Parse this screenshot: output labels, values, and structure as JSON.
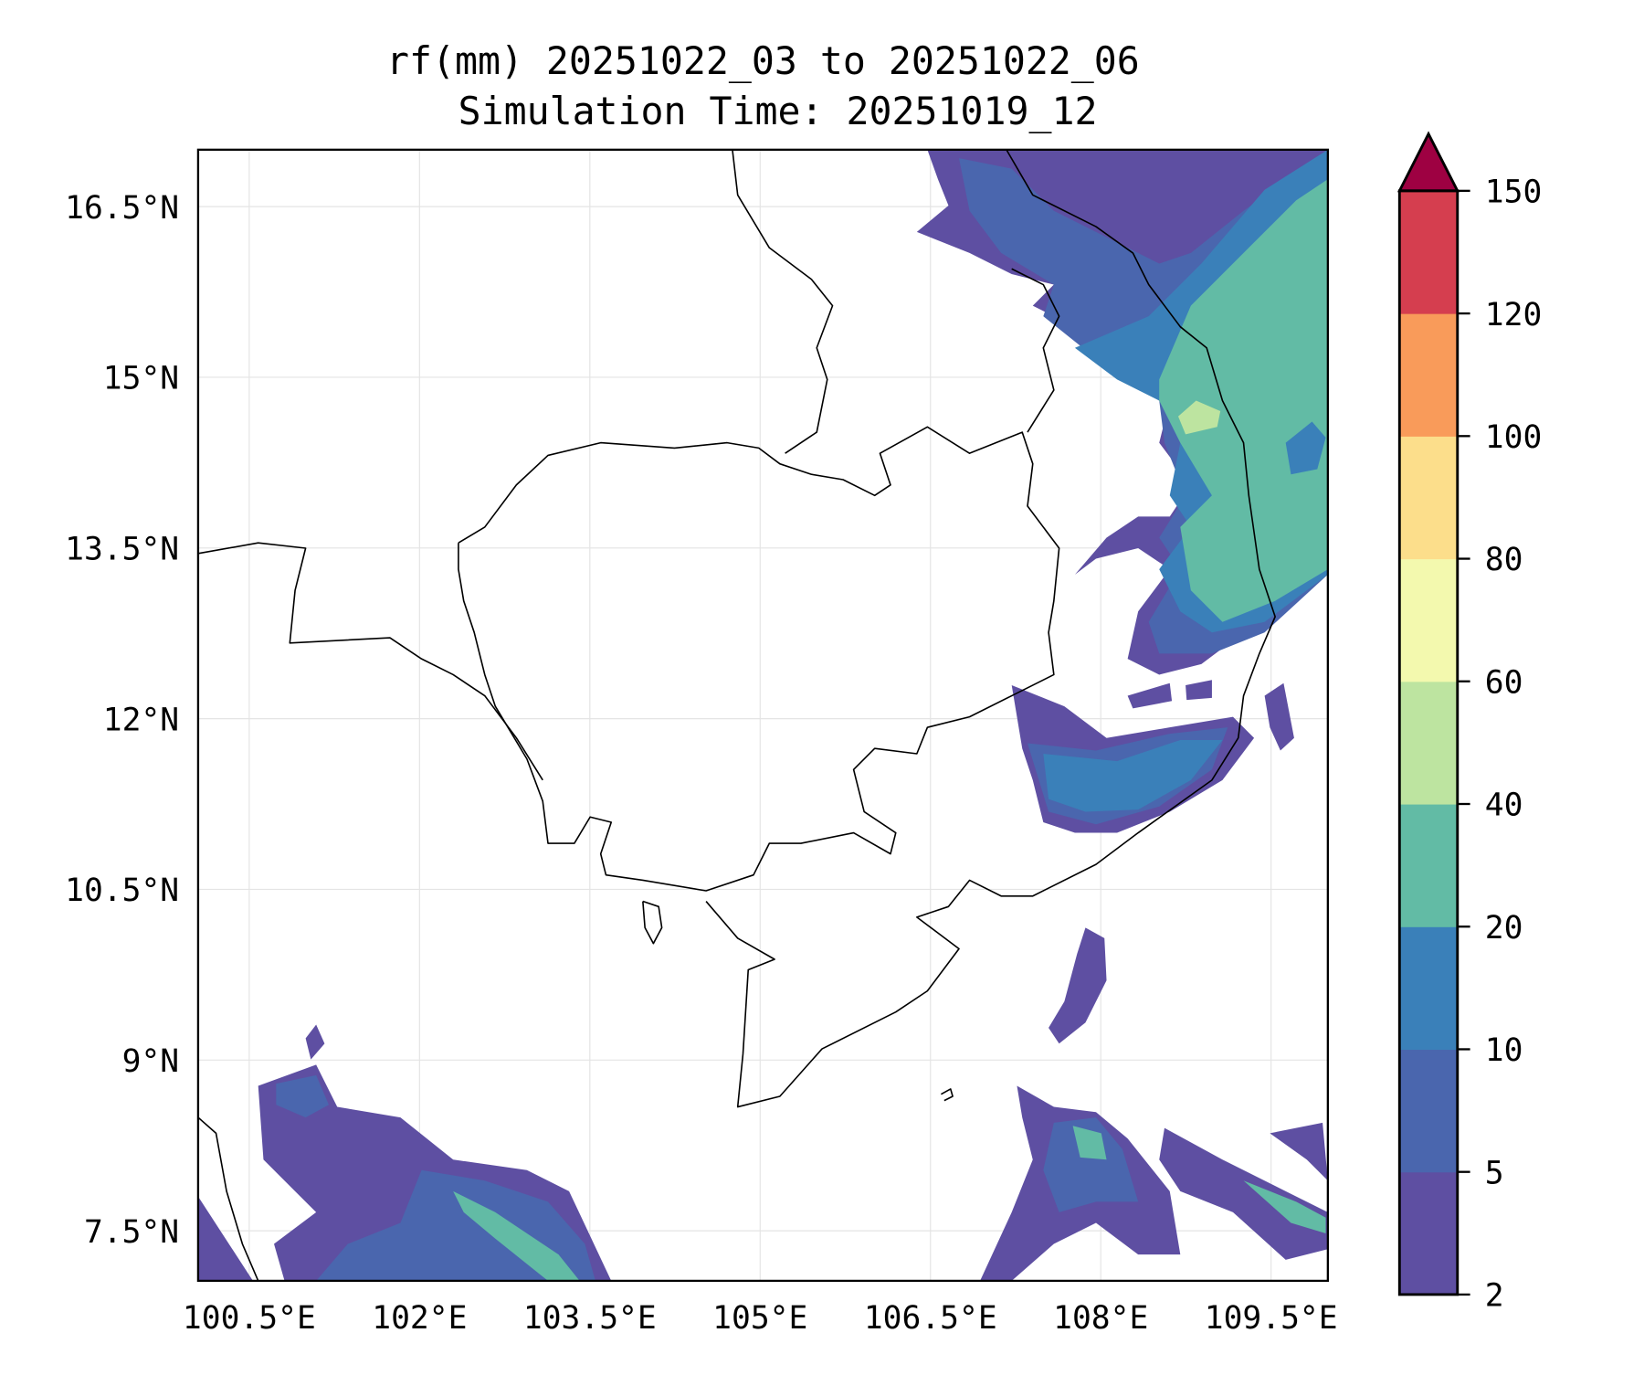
{
  "chart_data": {
    "type": "heatmap",
    "subtype": "filled-contour-map",
    "title": "rf(mm) 20251022_03 to 20251022_06",
    "subtitle": "Simulation Time: 20251019_12",
    "xlim": [
      100.05,
      110.0
    ],
    "ylim": [
      7.06,
      17.0
    ],
    "xticks": [
      100.5,
      102,
      103.5,
      105,
      106.5,
      108,
      109.5
    ],
    "xtick_labels": [
      "100.5°E",
      "102°E",
      "103.5°E",
      "105°E",
      "106.5°E",
      "108°E",
      "109.5°E"
    ],
    "yticks": [
      7.5,
      9,
      10.5,
      12,
      13.5,
      15,
      16.5
    ],
    "ytick_labels": [
      "7.5°N",
      "9°N",
      "10.5°N",
      "12°N",
      "13.5°N",
      "15°N",
      "16.5°N"
    ],
    "grid": true,
    "colorbar": {
      "levels": [
        2,
        5,
        10,
        20,
        40,
        60,
        80,
        100,
        120,
        150
      ],
      "labels": [
        "2",
        "5",
        "10",
        "20",
        "40",
        "60",
        "80",
        "100",
        "120",
        "150"
      ],
      "colors": [
        "#5e4fa2",
        "#4a66ae",
        "#3a80b9",
        "#62bba5",
        "#bde4a0",
        "#f3f9ae",
        "#fcde8b",
        "#f99b5a",
        "#d53e4f"
      ],
      "extend_color": "#9e0142",
      "extend": "max",
      "placement": "right"
    }
  }
}
